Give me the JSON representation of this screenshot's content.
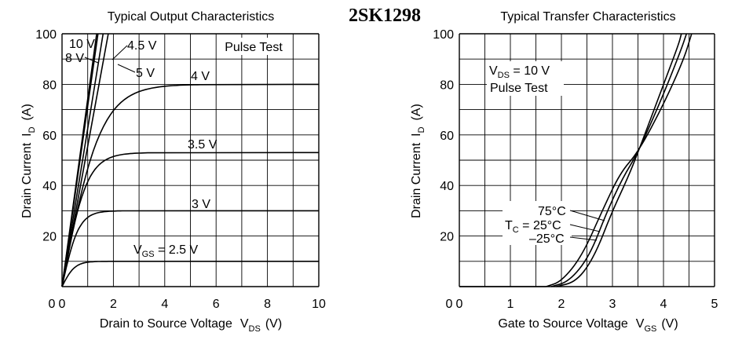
{
  "header_title": "2SK1298",
  "chart_data": [
    {
      "type": "line",
      "title": "Typical Output Characteristics",
      "xlabel": "Drain to Source Voltage",
      "xlabel_symbol": "V",
      "xlabel_sub": "DS",
      "xlabel_unit": "(V)",
      "ylabel": "Drain Current",
      "ylabel_symbol": "I",
      "ylabel_sub": "D",
      "ylabel_unit": "(A)",
      "xlim": [
        0,
        10
      ],
      "ylim": [
        0,
        100
      ],
      "xticks": [
        0,
        2,
        4,
        6,
        8,
        10
      ],
      "yticks": [
        20,
        40,
        60,
        80,
        100
      ],
      "grid": true,
      "annotation": "Pulse Test",
      "vgs_prefix": "V",
      "vgs_sub": "GS",
      "vgs_suffix": " = 2.5  V",
      "series": [
        {
          "name": "2.5 V",
          "type": "sat",
          "isat": 10,
          "vk": 1.0
        },
        {
          "name": "3 V",
          "type": "sat",
          "isat": 30,
          "vk": 1.3
        },
        {
          "name": "3.5 V",
          "type": "sat",
          "isat": 53,
          "vk": 1.9
        },
        {
          "name": "4 V",
          "type": "sat",
          "isat": 80,
          "vk": 3.0
        },
        {
          "name": "4.5 V",
          "type": "linear",
          "x_end": 1.8,
          "y_end": 100
        },
        {
          "name": "5 V",
          "type": "linear",
          "x_end": 1.6,
          "y_end": 100
        },
        {
          "name": "8 V",
          "type": "linear",
          "x_end": 1.4,
          "y_end": 100
        },
        {
          "name": "10 V",
          "type": "linear",
          "x_end": 1.35,
          "y_end": 100
        }
      ],
      "curve_labels": [
        "10 V",
        "8 V",
        "4.5 V",
        "5 V",
        "4 V",
        "3.5 V",
        "3 V"
      ]
    },
    {
      "type": "line",
      "title": "Typical Transfer Characteristics",
      "xlabel": "Gate to Source Voltage",
      "xlabel_symbol": "V",
      "xlabel_sub": "GS",
      "xlabel_unit": "(V)",
      "ylabel": "Drain Current",
      "ylabel_symbol": "I",
      "ylabel_sub": "D",
      "ylabel_unit": "(A)",
      "xlim": [
        0,
        5
      ],
      "ylim": [
        0,
        100
      ],
      "xticks": [
        0,
        1,
        2,
        3,
        4,
        5
      ],
      "yticks": [
        20,
        40,
        60,
        80,
        100
      ],
      "grid": true,
      "annotation_vds_prefix": "V",
      "annotation_vds_sub": "DS",
      "annotation_vds_suffix": " = 10 V",
      "annotation_pulse": "Pulse Test",
      "tc_prefix": "T",
      "tc_sub": "C",
      "series": [
        {
          "name": "75°C",
          "points": [
            [
              1.7,
              0
            ],
            [
              2.0,
              2
            ],
            [
              2.4,
              12
            ],
            [
              2.8,
              30
            ],
            [
              3.15,
              45
            ],
            [
              3.5,
              53
            ],
            [
              4.0,
              72
            ],
            [
              4.4,
              90
            ],
            [
              4.55,
              100
            ]
          ]
        },
        {
          "name": "25°C",
          "points": [
            [
              1.8,
              0
            ],
            [
              2.15,
              2
            ],
            [
              2.55,
              12
            ],
            [
              2.9,
              30
            ],
            [
              3.2,
              43
            ],
            [
              3.5,
              53
            ],
            [
              4.0,
              76
            ],
            [
              4.35,
              94
            ],
            [
              4.45,
              100
            ]
          ]
        },
        {
          "name": "–25°C",
          "points": [
            [
              1.9,
              0
            ],
            [
              2.3,
              2
            ],
            [
              2.65,
              12
            ],
            [
              3.0,
              30
            ],
            [
              3.3,
              43
            ],
            [
              3.5,
              53
            ],
            [
              4.0,
              80
            ],
            [
              4.3,
              96
            ],
            [
              4.35,
              100
            ]
          ]
        }
      ],
      "curve_labels": [
        "75°C",
        " = 25°C",
        "–25°C"
      ]
    }
  ]
}
